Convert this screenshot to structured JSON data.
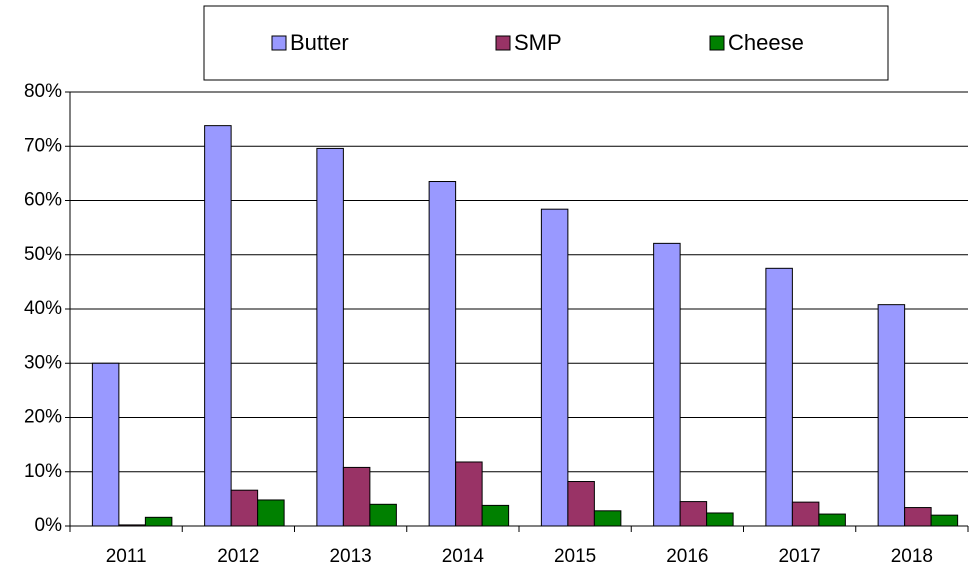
{
  "chart_data": {
    "type": "bar",
    "categories": [
      "2011",
      "2012",
      "2013",
      "2014",
      "2015",
      "2016",
      "2017",
      "2018"
    ],
    "series": [
      {
        "name": "Butter",
        "color": "#9999ff",
        "values": [
          30,
          73.8,
          69.6,
          63.5,
          58.4,
          52.1,
          47.5,
          40.8
        ]
      },
      {
        "name": "SMP",
        "color": "#993366",
        "values": [
          0.2,
          6.6,
          10.8,
          11.8,
          8.2,
          4.5,
          4.4,
          3.4
        ]
      },
      {
        "name": "Cheese",
        "color": "#008000",
        "values": [
          1.6,
          4.8,
          4.0,
          3.8,
          2.8,
          2.4,
          2.2,
          2.0
        ]
      }
    ],
    "ylim": [
      0,
      80
    ],
    "yticks": [
      {
        "value": 0,
        "label": "0%"
      },
      {
        "value": 10,
        "label": "10%"
      },
      {
        "value": 20,
        "label": "20%"
      },
      {
        "value": 30,
        "label": "30%"
      },
      {
        "value": 40,
        "label": "40%"
      },
      {
        "value": 50,
        "label": "50%"
      },
      {
        "value": 60,
        "label": "60%"
      },
      {
        "value": 70,
        "label": "70%"
      },
      {
        "value": 80,
        "label": "80%"
      }
    ],
    "grid": true,
    "legend": "top"
  }
}
